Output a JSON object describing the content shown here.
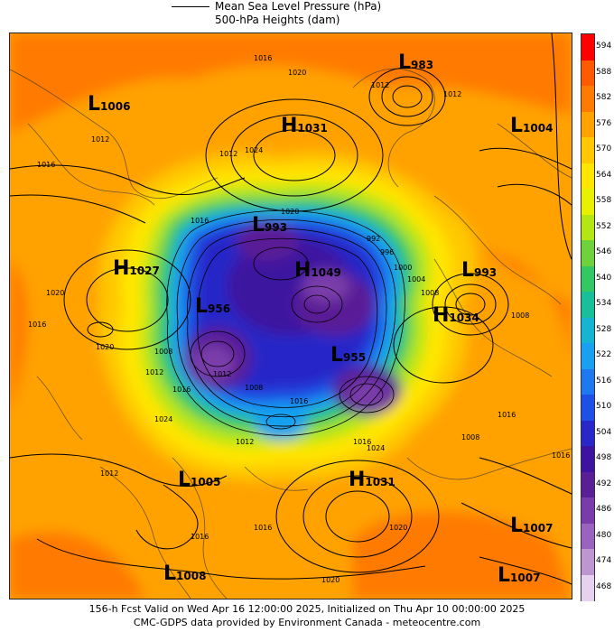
{
  "legend": {
    "line_label_1": "Mean Sea Level Pressure (hPa)",
    "line_label_2": "500-hPa Heights (dam)"
  },
  "scale": {
    "labels": [
      "594",
      "588",
      "582",
      "576",
      "570",
      "564",
      "558",
      "552",
      "546",
      "540",
      "534",
      "528",
      "522",
      "516",
      "510",
      "504",
      "498",
      "492",
      "486",
      "480",
      "474",
      "468"
    ],
    "colors": [
      "#ff0000",
      "#ff5a00",
      "#ff7a00",
      "#ffa200",
      "#ffc800",
      "#ffe600",
      "#e6f000",
      "#b4e614",
      "#6fd23c",
      "#32c864",
      "#19be9b",
      "#14b4d2",
      "#19a0f0",
      "#1e78f0",
      "#1e50e6",
      "#2828c8",
      "#3c14a0",
      "#5a1e96",
      "#7a3caa",
      "#9a64be",
      "#be96d2",
      "#e6d2ee"
    ]
  },
  "centers": [
    {
      "type": "L",
      "value": "983"
    },
    {
      "type": "L",
      "value": "1006"
    },
    {
      "type": "H",
      "value": "1031"
    },
    {
      "type": "L",
      "value": "1004"
    },
    {
      "type": "L",
      "value": "993"
    },
    {
      "type": "H",
      "value": "1027"
    },
    {
      "type": "L",
      "value": "993"
    },
    {
      "type": "H",
      "value": "1034"
    },
    {
      "type": "L",
      "value": "956"
    },
    {
      "type": "H",
      "value": "1049"
    },
    {
      "type": "L",
      "value": "955"
    },
    {
      "type": "L",
      "value": "1005"
    },
    {
      "type": "H",
      "value": "1031"
    },
    {
      "type": "L",
      "value": "1007"
    },
    {
      "type": "L",
      "value": "1008"
    },
    {
      "type": "L",
      "value": "1007"
    }
  ],
  "isobar_labels": [
    "1016",
    "1020",
    "1012",
    "1024",
    "1016",
    "1012",
    "1020",
    "1016",
    "1012",
    "1016",
    "1008",
    "1020",
    "1024",
    "1012",
    "1016",
    "1020",
    "1016",
    "1008",
    "1016",
    "1012",
    "1020",
    "1016",
    "1012",
    "992",
    "996",
    "1000",
    "1004",
    "1008",
    "1008",
    "1016",
    "1020",
    "1012",
    "1008",
    "1016",
    "1024",
    "1012",
    "1016"
  ],
  "footer": {
    "line1": "156-h Fcst Valid on Wed Apr 16 12:00:00 2025, Initialized on Thu Apr 10 00:00:00 2025",
    "line2": "CMC-GDPS data provided by Environment Canada - meteocentre.com"
  }
}
